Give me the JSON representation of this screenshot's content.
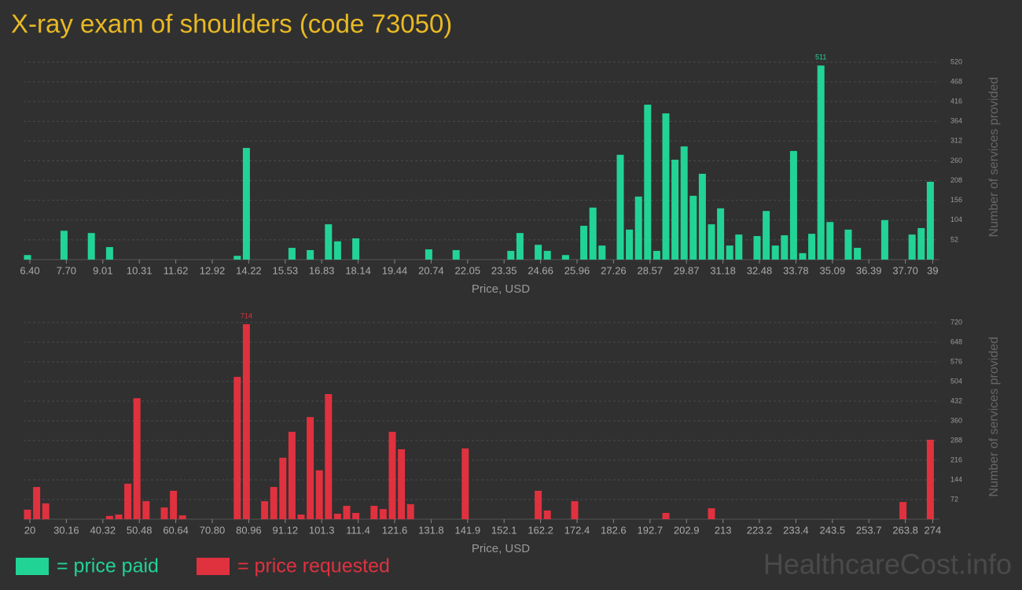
{
  "title": "X-ray exam of shoulders (code 73050)",
  "watermark": "HealthcareCost.info",
  "chart_data": [
    {
      "type": "bar",
      "x_label": "Price, USD",
      "y_label": "Number of services provided",
      "categories": [
        "6.40",
        null,
        null,
        null,
        "7.70",
        null,
        null,
        null,
        "9.01",
        null,
        null,
        null,
        "10.31",
        null,
        null,
        null,
        "11.62",
        null,
        null,
        null,
        "12.92",
        null,
        null,
        null,
        "14.22",
        null,
        null,
        null,
        "15.53",
        null,
        null,
        null,
        "16.83",
        null,
        null,
        null,
        "18.14",
        null,
        null,
        null,
        "19.44",
        null,
        null,
        null,
        "20.74",
        null,
        null,
        null,
        "22.05",
        null,
        null,
        null,
        "23.35",
        null,
        null,
        null,
        "24.66",
        null,
        null,
        null,
        "25.96",
        null,
        null,
        null,
        "27.26",
        null,
        null,
        null,
        "28.57",
        null,
        null,
        null,
        "29.87",
        null,
        null,
        null,
        "31.18",
        null,
        null,
        null,
        "32.48",
        null,
        null,
        null,
        "33.78",
        null,
        null,
        null,
        "35.09",
        null,
        null,
        null,
        "36.39",
        null,
        null,
        null,
        "37.70",
        null,
        null,
        "39"
      ],
      "series": [
        {
          "name": "= price paid",
          "color": "#22d396",
          "values": [
            12,
            0,
            0,
            0,
            76,
            0,
            0,
            70,
            0,
            33,
            0,
            0,
            0,
            0,
            0,
            0,
            0,
            0,
            0,
            0,
            0,
            0,
            0,
            10,
            294,
            0,
            0,
            0,
            0,
            31,
            0,
            25,
            0,
            93,
            48,
            0,
            56,
            0,
            0,
            0,
            0,
            0,
            0,
            0,
            27,
            0,
            0,
            25,
            0,
            0,
            0,
            0,
            0,
            23,
            70,
            0,
            39,
            23,
            0,
            12,
            0,
            89,
            137,
            37,
            0,
            276,
            79,
            166,
            408,
            23,
            385,
            263,
            298,
            168,
            226,
            93,
            135,
            37,
            66,
            0,
            62,
            128,
            37,
            64,
            286,
            17,
            68,
            511,
            99,
            0,
            79,
            31,
            0,
            0,
            104,
            0,
            0,
            66,
            83,
            205
          ]
        }
      ],
      "ylim": [
        0,
        540
      ],
      "yticks": [
        52,
        104,
        156,
        208,
        260,
        312,
        364,
        416,
        468,
        520
      ],
      "grid": true
    },
    {
      "type": "bar",
      "x_label": "Price, USD",
      "y_label": "Number of services provided",
      "categories": [
        "20",
        null,
        null,
        null,
        "30.16",
        null,
        null,
        null,
        "40.32",
        null,
        null,
        null,
        "50.48",
        null,
        null,
        null,
        "60.64",
        null,
        null,
        null,
        "70.80",
        null,
        null,
        null,
        "80.96",
        null,
        null,
        null,
        "91.12",
        null,
        null,
        null,
        "101.3",
        null,
        null,
        null,
        "111.4",
        null,
        null,
        null,
        "121.6",
        null,
        null,
        null,
        "131.8",
        null,
        null,
        null,
        "141.9",
        null,
        null,
        null,
        "152.1",
        null,
        null,
        null,
        "162.2",
        null,
        null,
        null,
        "172.4",
        null,
        null,
        null,
        "182.6",
        null,
        null,
        null,
        "192.7",
        null,
        null,
        null,
        "202.9",
        null,
        null,
        null,
        "213",
        null,
        null,
        null,
        "223.2",
        null,
        null,
        null,
        "233.4",
        null,
        null,
        null,
        "243.5",
        null,
        null,
        null,
        "253.7",
        null,
        null,
        null,
        "263.8",
        null,
        null,
        "274"
      ],
      "series": [
        {
          "name": "= price requested",
          "color": "#e0313f",
          "values": [
            35,
            118,
            58,
            0,
            0,
            0,
            0,
            0,
            0,
            12,
            17,
            130,
            443,
            66,
            0,
            43,
            104,
            14,
            0,
            0,
            0,
            0,
            0,
            521,
            714,
            0,
            66,
            118,
            225,
            320,
            17,
            374,
            179,
            458,
            20,
            49,
            23,
            0,
            49,
            37,
            320,
            256,
            55,
            0,
            0,
            0,
            0,
            0,
            259,
            0,
            0,
            0,
            0,
            0,
            0,
            0,
            104,
            32,
            0,
            0,
            66,
            0,
            0,
            0,
            0,
            0,
            0,
            0,
            0,
            0,
            23,
            0,
            0,
            0,
            0,
            40,
            0,
            0,
            0,
            0,
            0,
            0,
            0,
            0,
            0,
            0,
            0,
            0,
            0,
            0,
            0,
            0,
            0,
            0,
            0,
            0,
            63,
            0,
            0,
            291
          ]
        }
      ],
      "ylim": [
        0,
        750
      ],
      "yticks": [
        72,
        144,
        216,
        288,
        360,
        432,
        504,
        576,
        648,
        720
      ],
      "grid": true
    }
  ]
}
